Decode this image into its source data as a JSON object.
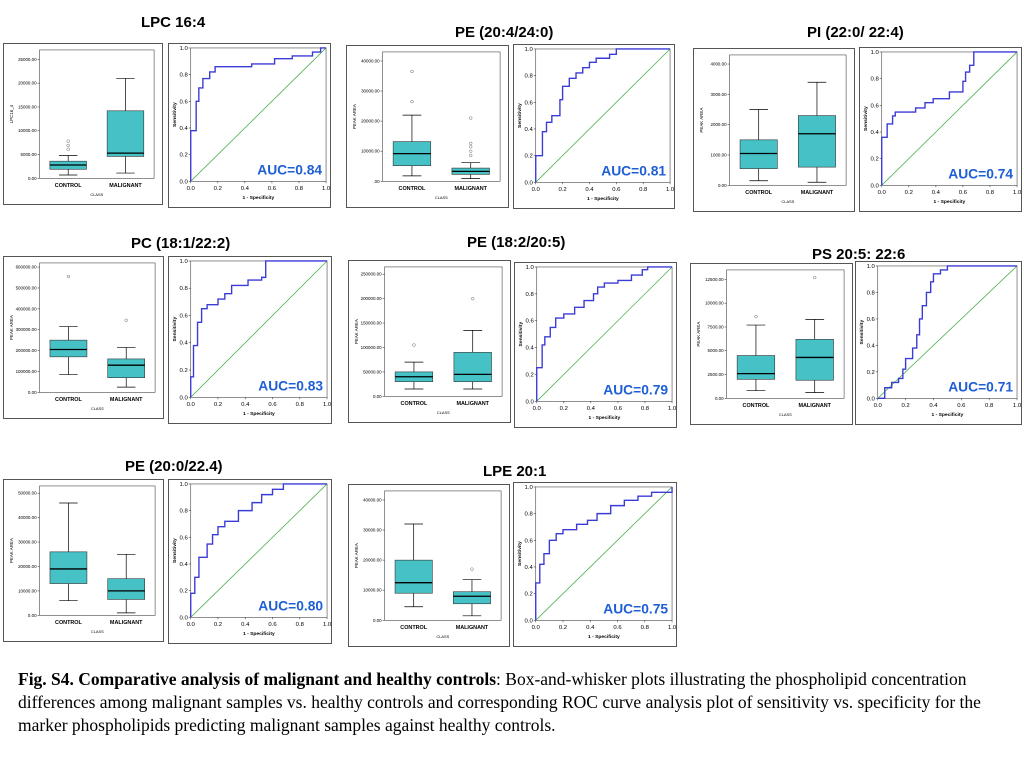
{
  "figure": {
    "caption_bold": "Fig. S4. Comparative analysis of malignant and healthy controls",
    "caption_rest": ": Box-and-whisker plots illustrating the phospholipid concentration differences among malignant samples vs. healthy controls and corresponding ROC curve analysis plot of sensitivity vs. specificity for the marker phospholipids predicting malignant samples against healthy controls."
  },
  "chart_data": [
    {
      "type": "box",
      "title": "LPC 16:4",
      "xlabel": "CLASS",
      "ylabel": "LPC16_4",
      "categories": [
        "CONTROL",
        "MALIGNANT"
      ],
      "yticks": [
        "0.00",
        "5000.00",
        "10000.00",
        "15000.00",
        "20000.00",
        "25000.00"
      ],
      "ylim": [
        0,
        27000
      ],
      "boxes": [
        {
          "min": 700,
          "q1": 1900,
          "median": 2800,
          "q3": 3600,
          "max": 4800,
          "outliers": [
            6100,
            6900,
            7800
          ]
        },
        {
          "min": 1100,
          "q1": 4600,
          "median": 5300,
          "q3": 14200,
          "max": 21000,
          "outliers": []
        }
      ]
    },
    {
      "type": "line",
      "subtype": "roc",
      "xlabel": "1 - Specificity",
      "ylabel": "Sensitivity",
      "ticks": [
        "0.0",
        "0.2",
        "0.4",
        "0.6",
        "0.8",
        "1.0"
      ],
      "auc_label": "AUC=0.84",
      "points": [
        [
          0,
          0
        ],
        [
          0,
          0.38
        ],
        [
          0.04,
          0.38
        ],
        [
          0.04,
          0.6
        ],
        [
          0.06,
          0.6
        ],
        [
          0.06,
          0.7
        ],
        [
          0.09,
          0.7
        ],
        [
          0.09,
          0.77
        ],
        [
          0.14,
          0.77
        ],
        [
          0.14,
          0.82
        ],
        [
          0.18,
          0.82
        ],
        [
          0.18,
          0.86
        ],
        [
          0.45,
          0.86
        ],
        [
          0.45,
          0.88
        ],
        [
          0.62,
          0.88
        ],
        [
          0.62,
          0.92
        ],
        [
          0.75,
          0.92
        ],
        [
          0.75,
          0.94
        ],
        [
          0.9,
          0.94
        ],
        [
          0.9,
          0.97
        ],
        [
          0.96,
          0.97
        ],
        [
          0.96,
          1
        ],
        [
          1,
          1
        ]
      ]
    },
    {
      "type": "box",
      "title": "PE (20:4/24:0)",
      "xlabel": "CLASS",
      "ylabel": "PEAK AREA",
      "categories": [
        "CONTROL",
        "MALIGNANT"
      ],
      "yticks": [
        ".00",
        "10000.00",
        "20000.00",
        "30000.00",
        "40000.00"
      ],
      "ylim": [
        0,
        43000
      ],
      "boxes": [
        {
          "min": 1800,
          "q1": 5200,
          "median": 9200,
          "q3": 13200,
          "max": 22000,
          "outliers": [
            26500,
            36500
          ]
        },
        {
          "min": 900,
          "q1": 2300,
          "median": 3300,
          "q3": 4400,
          "max": 6200,
          "outliers": [
            8600,
            10000,
            11500,
            12600,
            21000
          ]
        }
      ]
    },
    {
      "type": "line",
      "subtype": "roc",
      "xlabel": "1 - Specificity",
      "ylabel": "Sensitivity",
      "ticks": [
        "0.0",
        "0.2",
        "0.4",
        "0.6",
        "0.8",
        "1.0"
      ],
      "auc_label": "AUC=0.81",
      "points": [
        [
          0,
          0
        ],
        [
          0,
          0.2
        ],
        [
          0.05,
          0.2
        ],
        [
          0.05,
          0.38
        ],
        [
          0.08,
          0.38
        ],
        [
          0.08,
          0.45
        ],
        [
          0.12,
          0.45
        ],
        [
          0.12,
          0.5
        ],
        [
          0.18,
          0.5
        ],
        [
          0.18,
          0.62
        ],
        [
          0.2,
          0.62
        ],
        [
          0.2,
          0.72
        ],
        [
          0.25,
          0.72
        ],
        [
          0.25,
          0.78
        ],
        [
          0.3,
          0.78
        ],
        [
          0.3,
          0.82
        ],
        [
          0.35,
          0.82
        ],
        [
          0.35,
          0.86
        ],
        [
          0.4,
          0.86
        ],
        [
          0.4,
          0.9
        ],
        [
          0.45,
          0.9
        ],
        [
          0.45,
          0.93
        ],
        [
          0.55,
          0.93
        ],
        [
          0.55,
          0.96
        ],
        [
          0.6,
          0.96
        ],
        [
          0.6,
          1
        ],
        [
          1,
          1
        ]
      ]
    },
    {
      "type": "box",
      "title": "PI (22:0/ 22:4)",
      "xlabel": "CLASS",
      "ylabel": "PEAK AREA",
      "categories": [
        "CONTROL",
        "MALIGNANT"
      ],
      "yticks": [
        "0.00",
        "1000.00",
        "2000.00",
        "3000.00",
        "4000.00"
      ],
      "ylim": [
        0,
        4300
      ],
      "boxes": [
        {
          "min": 150,
          "q1": 550,
          "median": 1050,
          "q3": 1500,
          "max": 2500,
          "outliers": []
        },
        {
          "min": 100,
          "q1": 600,
          "median": 1700,
          "q3": 2300,
          "max": 3400,
          "outliers": []
        }
      ]
    },
    {
      "type": "line",
      "subtype": "roc",
      "xlabel": "1 - Specificity",
      "ylabel": "Sensitivity",
      "ticks": [
        "0.0",
        "0.2",
        "0.4",
        "0.6",
        "0.8",
        "1.0"
      ],
      "auc_label": "AUC=0.74",
      "points": [
        [
          0,
          0
        ],
        [
          0,
          0.36
        ],
        [
          0.04,
          0.36
        ],
        [
          0.04,
          0.46
        ],
        [
          0.08,
          0.46
        ],
        [
          0.08,
          0.52
        ],
        [
          0.1,
          0.52
        ],
        [
          0.1,
          0.55
        ],
        [
          0.25,
          0.55
        ],
        [
          0.25,
          0.58
        ],
        [
          0.32,
          0.58
        ],
        [
          0.32,
          0.62
        ],
        [
          0.38,
          0.62
        ],
        [
          0.38,
          0.65
        ],
        [
          0.5,
          0.65
        ],
        [
          0.5,
          0.7
        ],
        [
          0.6,
          0.7
        ],
        [
          0.6,
          0.78
        ],
        [
          0.62,
          0.78
        ],
        [
          0.62,
          0.85
        ],
        [
          0.65,
          0.85
        ],
        [
          0.65,
          0.9
        ],
        [
          0.68,
          0.9
        ],
        [
          0.68,
          1
        ],
        [
          1,
          1
        ]
      ]
    },
    {
      "type": "box",
      "title": "PC (18:1/22:2)",
      "xlabel": "CLASS",
      "ylabel": "PEAK AREA",
      "categories": [
        "CONTROL",
        "MALIGNANT"
      ],
      "yticks": [
        "0.00",
        "100000.00",
        "200000.00",
        "300000.00",
        "400000.00",
        "500000.00",
        "600000.00"
      ],
      "ylim": [
        0,
        620000
      ],
      "boxes": [
        {
          "min": 85000,
          "q1": 170000,
          "median": 205000,
          "q3": 250000,
          "max": 315000,
          "outliers": [
            555000
          ]
        },
        {
          "min": 25000,
          "q1": 70000,
          "median": 130000,
          "q3": 160000,
          "max": 215000,
          "outliers": [
            345000
          ]
        }
      ]
    },
    {
      "type": "line",
      "subtype": "roc",
      "xlabel": "1 - Specificity",
      "ylabel": "Sensitivity",
      "ticks": [
        "0.0",
        "0.2",
        "0.4",
        "0.6",
        "0.8",
        "1.0"
      ],
      "auc_label": "AUC=0.83",
      "points": [
        [
          0,
          0
        ],
        [
          0,
          0.15
        ],
        [
          0.02,
          0.15
        ],
        [
          0.02,
          0.38
        ],
        [
          0.05,
          0.38
        ],
        [
          0.05,
          0.55
        ],
        [
          0.08,
          0.55
        ],
        [
          0.08,
          0.65
        ],
        [
          0.12,
          0.65
        ],
        [
          0.12,
          0.68
        ],
        [
          0.2,
          0.68
        ],
        [
          0.2,
          0.72
        ],
        [
          0.25,
          0.72
        ],
        [
          0.25,
          0.76
        ],
        [
          0.3,
          0.76
        ],
        [
          0.3,
          0.82
        ],
        [
          0.42,
          0.82
        ],
        [
          0.42,
          0.86
        ],
        [
          0.52,
          0.86
        ],
        [
          0.52,
          0.88
        ],
        [
          0.55,
          0.88
        ],
        [
          0.55,
          1
        ],
        [
          1,
          1
        ]
      ]
    },
    {
      "type": "box",
      "title": "PE (18:2/20:5)",
      "xlabel": "CLASS",
      "ylabel": "PEAK AREA",
      "categories": [
        "CONTROL",
        "MALIGNANT"
      ],
      "yticks": [
        "0.00",
        "50000.00",
        "100000.00",
        "150000.00",
        "200000.00",
        "250000.00"
      ],
      "ylim": [
        0,
        265000
      ],
      "boxes": [
        {
          "min": 15000,
          "q1": 30000,
          "median": 40000,
          "q3": 50000,
          "max": 70000,
          "outliers": [
            105000
          ]
        },
        {
          "min": 15000,
          "q1": 30000,
          "median": 45000,
          "q3": 90000,
          "max": 135000,
          "outliers": [
            200000
          ]
        }
      ]
    },
    {
      "type": "line",
      "subtype": "roc",
      "xlabel": "1 - Specificity",
      "ylabel": "Sensitivity",
      "ticks": [
        "0.0",
        "0.2",
        "0.4",
        "0.6",
        "0.8",
        "1.0"
      ],
      "auc_label": "AUC=0.79",
      "points": [
        [
          0,
          0
        ],
        [
          0,
          0.25
        ],
        [
          0.04,
          0.25
        ],
        [
          0.04,
          0.42
        ],
        [
          0.06,
          0.42
        ],
        [
          0.06,
          0.48
        ],
        [
          0.1,
          0.48
        ],
        [
          0.1,
          0.55
        ],
        [
          0.14,
          0.55
        ],
        [
          0.14,
          0.62
        ],
        [
          0.2,
          0.62
        ],
        [
          0.2,
          0.65
        ],
        [
          0.28,
          0.65
        ],
        [
          0.28,
          0.7
        ],
        [
          0.35,
          0.7
        ],
        [
          0.35,
          0.75
        ],
        [
          0.42,
          0.75
        ],
        [
          0.42,
          0.8
        ],
        [
          0.45,
          0.8
        ],
        [
          0.45,
          0.85
        ],
        [
          0.5,
          0.85
        ],
        [
          0.5,
          0.88
        ],
        [
          0.6,
          0.88
        ],
        [
          0.6,
          0.9
        ],
        [
          0.7,
          0.9
        ],
        [
          0.7,
          0.94
        ],
        [
          0.78,
          0.94
        ],
        [
          0.78,
          0.98
        ],
        [
          0.82,
          0.98
        ],
        [
          0.82,
          1
        ],
        [
          1,
          1
        ]
      ]
    },
    {
      "type": "box",
      "title": "PS 20:5: 22:6",
      "xlabel": "CLASS",
      "ylabel": "PEAK AREA",
      "categories": [
        "CONTROL",
        "MALIGNANT"
      ],
      "yticks": [
        "0.00",
        "2500.00",
        "5000.00",
        "7500.00",
        "10000.00",
        "12500.00"
      ],
      "ylim": [
        0,
        13500
      ],
      "boxes": [
        {
          "min": 800,
          "q1": 2000,
          "median": 2600,
          "q3": 4500,
          "max": 7700,
          "outliers": [
            8600
          ]
        },
        {
          "min": 600,
          "q1": 1900,
          "median": 4300,
          "q3": 6200,
          "max": 8300,
          "outliers": [
            12700
          ]
        }
      ]
    },
    {
      "type": "line",
      "subtype": "roc",
      "xlabel": "1 - Specificity",
      "ylabel": "Sensitivity",
      "ticks": [
        "0.0",
        "0.2",
        "0.4",
        "0.6",
        "0.8",
        "1.0"
      ],
      "auc_label": "AUC=0.71",
      "points": [
        [
          0,
          0
        ],
        [
          0.05,
          0
        ],
        [
          0.05,
          0.08
        ],
        [
          0.1,
          0.08
        ],
        [
          0.1,
          0.12
        ],
        [
          0.15,
          0.12
        ],
        [
          0.15,
          0.15
        ],
        [
          0.18,
          0.15
        ],
        [
          0.18,
          0.22
        ],
        [
          0.2,
          0.22
        ],
        [
          0.2,
          0.3
        ],
        [
          0.25,
          0.3
        ],
        [
          0.25,
          0.38
        ],
        [
          0.28,
          0.38
        ],
        [
          0.28,
          0.48
        ],
        [
          0.3,
          0.48
        ],
        [
          0.3,
          0.6
        ],
        [
          0.32,
          0.6
        ],
        [
          0.32,
          0.7
        ],
        [
          0.35,
          0.7
        ],
        [
          0.35,
          0.8
        ],
        [
          0.38,
          0.8
        ],
        [
          0.38,
          0.88
        ],
        [
          0.4,
          0.88
        ],
        [
          0.4,
          0.94
        ],
        [
          0.45,
          0.94
        ],
        [
          0.45,
          0.97
        ],
        [
          0.5,
          0.97
        ],
        [
          0.5,
          1
        ],
        [
          1,
          1
        ]
      ]
    },
    {
      "type": "box",
      "title": "PE (20:0/22.4)",
      "xlabel": "CLASS",
      "ylabel": "PEAK AREA",
      "categories": [
        "CONTROL",
        "MALIGNANT"
      ],
      "yticks": [
        "0.00",
        "10000.00",
        "20000.00",
        "30000.00",
        "40000.00",
        "50000.00"
      ],
      "ylim": [
        0,
        53000
      ],
      "boxes": [
        {
          "min": 6000,
          "q1": 13000,
          "median": 19000,
          "q3": 26000,
          "max": 46000,
          "outliers": []
        },
        {
          "min": 1000,
          "q1": 6500,
          "median": 10000,
          "q3": 15000,
          "max": 25000,
          "outliers": []
        }
      ]
    },
    {
      "type": "line",
      "subtype": "roc",
      "xlabel": "1 - Specificity",
      "ylabel": "Sensitivity",
      "ticks": [
        "0.0",
        "0.2",
        "0.4",
        "0.6",
        "0.8",
        "1.0"
      ],
      "auc_label": "AUC=0.80",
      "points": [
        [
          0,
          0
        ],
        [
          0,
          0.18
        ],
        [
          0.03,
          0.18
        ],
        [
          0.03,
          0.3
        ],
        [
          0.06,
          0.3
        ],
        [
          0.06,
          0.45
        ],
        [
          0.12,
          0.45
        ],
        [
          0.12,
          0.55
        ],
        [
          0.16,
          0.55
        ],
        [
          0.16,
          0.62
        ],
        [
          0.2,
          0.62
        ],
        [
          0.2,
          0.68
        ],
        [
          0.25,
          0.68
        ],
        [
          0.25,
          0.72
        ],
        [
          0.35,
          0.72
        ],
        [
          0.35,
          0.8
        ],
        [
          0.45,
          0.8
        ],
        [
          0.45,
          0.86
        ],
        [
          0.52,
          0.86
        ],
        [
          0.52,
          0.92
        ],
        [
          0.6,
          0.92
        ],
        [
          0.6,
          0.96
        ],
        [
          0.68,
          0.96
        ],
        [
          0.68,
          1
        ],
        [
          1,
          1
        ]
      ]
    },
    {
      "type": "box",
      "title": "LPE 20:1",
      "xlabel": "CLASS",
      "ylabel": "PEAK AREA",
      "categories": [
        "CONTROL",
        "MALIGNANT"
      ],
      "yticks": [
        "0.00",
        "10000.00",
        "20000.00",
        "30000.00",
        "40000.00"
      ],
      "ylim": [
        0,
        43000
      ],
      "boxes": [
        {
          "min": 4500,
          "q1": 9000,
          "median": 12500,
          "q3": 20000,
          "max": 32000,
          "outliers": []
        },
        {
          "min": 1500,
          "q1": 5500,
          "median": 8000,
          "q3": 9500,
          "max": 13500,
          "outliers": [
            17000
          ]
        }
      ]
    },
    {
      "type": "line",
      "subtype": "roc",
      "xlabel": "1 - Specificity",
      "ylabel": "Sensitivity",
      "ticks": [
        "0.0",
        "0.2",
        "0.4",
        "0.6",
        "0.8",
        "1.0"
      ],
      "auc_label": "AUC=0.75",
      "points": [
        [
          0,
          0
        ],
        [
          0,
          0.28
        ],
        [
          0.03,
          0.28
        ],
        [
          0.03,
          0.42
        ],
        [
          0.06,
          0.42
        ],
        [
          0.06,
          0.5
        ],
        [
          0.1,
          0.5
        ],
        [
          0.1,
          0.6
        ],
        [
          0.15,
          0.6
        ],
        [
          0.15,
          0.65
        ],
        [
          0.2,
          0.65
        ],
        [
          0.2,
          0.68
        ],
        [
          0.3,
          0.68
        ],
        [
          0.3,
          0.72
        ],
        [
          0.38,
          0.72
        ],
        [
          0.38,
          0.75
        ],
        [
          0.45,
          0.75
        ],
        [
          0.45,
          0.8
        ],
        [
          0.55,
          0.8
        ],
        [
          0.55,
          0.86
        ],
        [
          0.65,
          0.86
        ],
        [
          0.65,
          0.9
        ],
        [
          0.75,
          0.9
        ],
        [
          0.75,
          0.93
        ],
        [
          0.85,
          0.93
        ],
        [
          0.85,
          0.96
        ],
        [
          1,
          0.96
        ],
        [
          1,
          1
        ]
      ]
    }
  ]
}
